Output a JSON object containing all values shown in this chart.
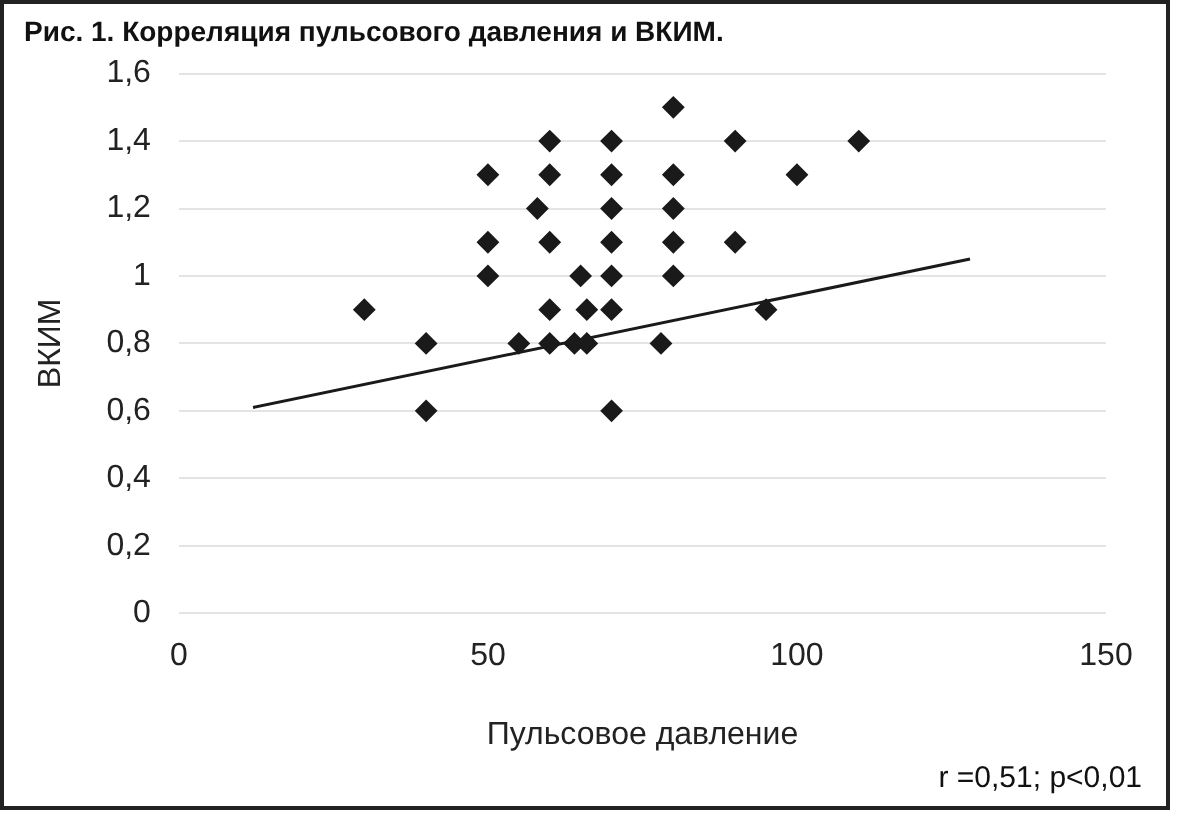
{
  "chart_data": {
    "type": "scatter",
    "title": "Рис. 1. Корреляция пульсового давления и ВКИМ.",
    "xlabel": "Пульсовое давление",
    "ylabel": "ВКИМ",
    "xlim": [
      0,
      150
    ],
    "xticks": [
      0,
      50,
      100,
      150
    ],
    "ylim": [
      0,
      1.6
    ],
    "yticks": [
      0,
      {
        "value": 0.2,
        "label": "0,2"
      },
      {
        "value": 0.4,
        "label": "0,4"
      },
      {
        "value": 0.6,
        "label": "0,6"
      },
      {
        "value": 0.8,
        "label": "0,8"
      },
      1,
      {
        "value": 1.2,
        "label": "1,2"
      },
      {
        "value": 1.4,
        "label": "1,4"
      },
      {
        "value": 1.6,
        "label": "1,6"
      }
    ],
    "grid": "y",
    "marker": "diamond",
    "legend": false,
    "annotations": [
      "r =0,51; p<0,01"
    ],
    "series": [
      {
        "color": "#1a1a1a",
        "x": [
          30,
          40,
          40,
          50,
          50,
          50,
          55,
          60,
          60,
          58,
          60,
          60,
          60,
          65,
          66,
          64,
          66,
          70,
          70,
          70,
          70,
          70,
          70,
          70,
          78,
          80,
          80,
          80,
          80,
          80,
          90,
          90,
          95,
          100,
          110
        ],
        "values": [
          0.9,
          0.8,
          0.6,
          1.3,
          1.1,
          1.0,
          0.8,
          1.4,
          1.3,
          1.2,
          1.1,
          0.9,
          0.8,
          1.0,
          0.9,
          0.8,
          0.8,
          1.4,
          1.3,
          1.2,
          1.1,
          1.0,
          0.9,
          0.6,
          0.8,
          1.5,
          1.3,
          1.2,
          1.1,
          1.0,
          1.4,
          1.1,
          0.9,
          1.3,
          1.4
        ]
      },
      {
        "type": "line",
        "marker": "none",
        "color": "#1a1a1a",
        "x": [
          12,
          128
        ],
        "values": [
          0.61,
          1.05
        ]
      }
    ]
  }
}
